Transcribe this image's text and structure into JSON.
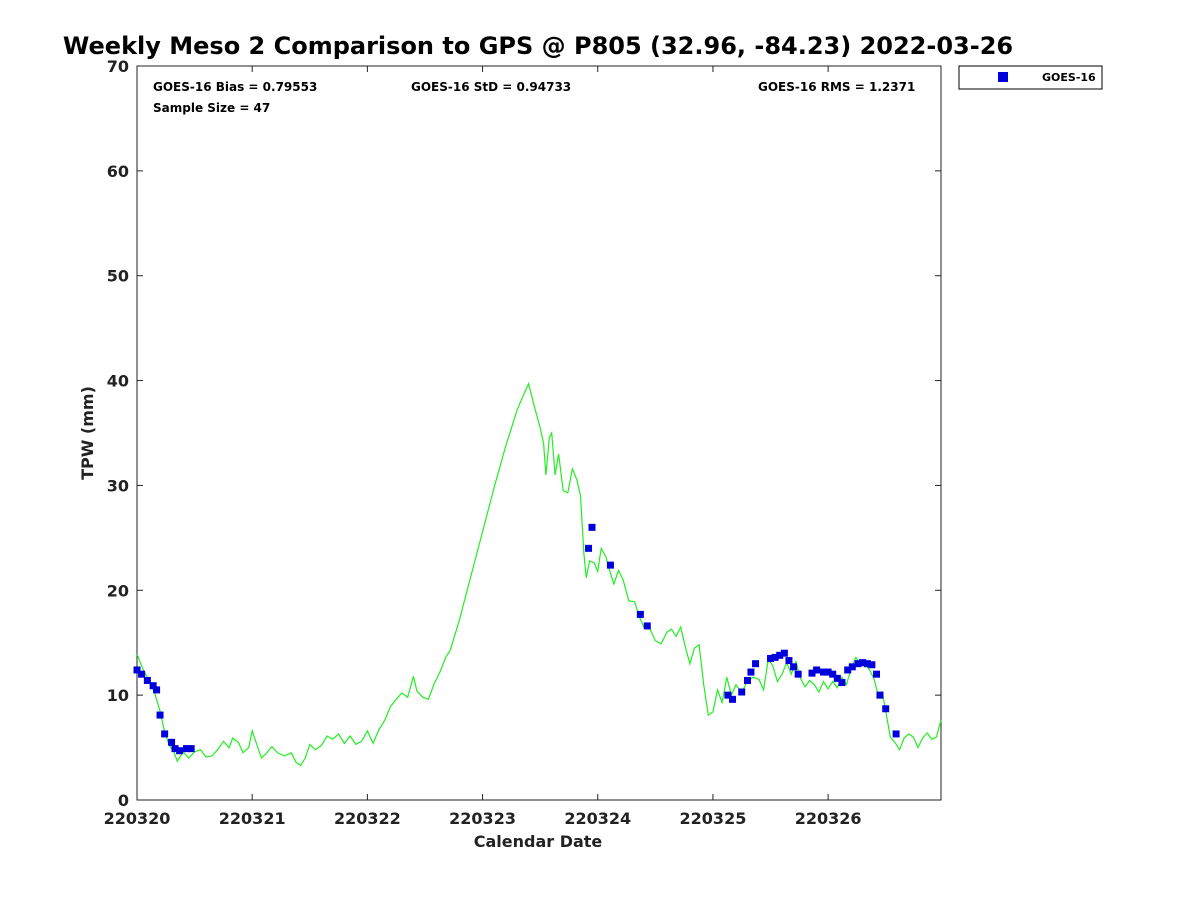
{
  "chart_data": {
    "type": "scatter",
    "title": "Weekly Meso 2 Comparison to GPS @ P805 (32.96, -84.23) 2022-03-26",
    "xlabel": "Calendar Date",
    "ylabel": "TPW (mm)",
    "xlim": [
      0,
      6.98
    ],
    "ylim": [
      0,
      70
    ],
    "x_ticks": [
      {
        "value": 0,
        "label": "220320"
      },
      {
        "value": 1,
        "label": "220321"
      },
      {
        "value": 2,
        "label": "220322"
      },
      {
        "value": 3,
        "label": "220323"
      },
      {
        "value": 4,
        "label": "220324"
      },
      {
        "value": 5,
        "label": "220325"
      },
      {
        "value": 6,
        "label": "220326"
      }
    ],
    "y_ticks": [
      0,
      10,
      20,
      30,
      40,
      50,
      60,
      70
    ],
    "stats": {
      "bias": "GOES-16 Bias = 0.79553",
      "std": "GOES-16 StD = 0.94733",
      "rms": "GOES-16 RMS = 1.2371",
      "sample": "Sample Size = 47"
    },
    "legend": {
      "position": "top-right-outside",
      "entries": [
        "GOES-16"
      ]
    },
    "colors": {
      "goes": "#0000dd",
      "gps": "#22ee22"
    },
    "series": [
      {
        "name": "GOES-16",
        "kind": "marker",
        "points": [
          [
            0.0,
            12.4
          ],
          [
            0.04,
            12.0
          ],
          [
            0.09,
            11.4
          ],
          [
            0.14,
            10.9
          ],
          [
            0.17,
            10.5
          ],
          [
            0.2,
            8.1
          ],
          [
            0.24,
            6.3
          ],
          [
            0.3,
            5.5
          ],
          [
            0.33,
            4.9
          ],
          [
            0.37,
            4.7
          ],
          [
            0.43,
            4.9
          ],
          [
            0.47,
            4.9
          ],
          [
            3.92,
            24.0
          ],
          [
            3.95,
            26.0
          ],
          [
            4.11,
            22.4
          ],
          [
            4.37,
            17.7
          ],
          [
            4.43,
            16.6
          ],
          [
            5.13,
            10.0
          ],
          [
            5.17,
            9.6
          ],
          [
            5.25,
            10.3
          ],
          [
            5.3,
            11.4
          ],
          [
            5.33,
            12.2
          ],
          [
            5.37,
            13.0
          ],
          [
            5.5,
            13.5
          ],
          [
            5.54,
            13.6
          ],
          [
            5.58,
            13.8
          ],
          [
            5.62,
            14.0
          ],
          [
            5.66,
            13.3
          ],
          [
            5.7,
            12.7
          ],
          [
            5.74,
            12.0
          ],
          [
            5.86,
            12.1
          ],
          [
            5.9,
            12.4
          ],
          [
            5.96,
            12.2
          ],
          [
            6.0,
            12.2
          ],
          [
            6.04,
            12.0
          ],
          [
            6.08,
            11.6
          ],
          [
            6.12,
            11.2
          ],
          [
            6.17,
            12.4
          ],
          [
            6.21,
            12.7
          ],
          [
            6.26,
            13.0
          ],
          [
            6.3,
            13.1
          ],
          [
            6.34,
            13.0
          ],
          [
            6.38,
            12.9
          ],
          [
            6.42,
            12.0
          ],
          [
            6.45,
            10.0
          ],
          [
            6.5,
            8.7
          ],
          [
            6.59,
            6.3
          ]
        ]
      },
      {
        "name": "",
        "kind": "line",
        "points": [
          [
            0.0,
            13.9
          ],
          [
            0.05,
            12.5
          ],
          [
            0.1,
            11.5
          ],
          [
            0.15,
            10.3
          ],
          [
            0.2,
            8.5
          ],
          [
            0.24,
            6.5
          ],
          [
            0.28,
            5.2
          ],
          [
            0.32,
            4.6
          ],
          [
            0.35,
            3.7
          ],
          [
            0.4,
            4.6
          ],
          [
            0.45,
            4.0
          ],
          [
            0.5,
            4.6
          ],
          [
            0.55,
            4.8
          ],
          [
            0.6,
            4.1
          ],
          [
            0.65,
            4.2
          ],
          [
            0.7,
            4.8
          ],
          [
            0.75,
            5.6
          ],
          [
            0.8,
            5.0
          ],
          [
            0.83,
            5.9
          ],
          [
            0.88,
            5.5
          ],
          [
            0.92,
            4.5
          ],
          [
            0.97,
            5.0
          ],
          [
            1.0,
            6.6
          ],
          [
            1.04,
            5.3
          ],
          [
            1.08,
            4.0
          ],
          [
            1.12,
            4.4
          ],
          [
            1.17,
            5.1
          ],
          [
            1.22,
            4.5
          ],
          [
            1.28,
            4.2
          ],
          [
            1.34,
            4.5
          ],
          [
            1.38,
            3.6
          ],
          [
            1.42,
            3.3
          ],
          [
            1.46,
            4.0
          ],
          [
            1.5,
            5.3
          ],
          [
            1.55,
            4.8
          ],
          [
            1.6,
            5.2
          ],
          [
            1.65,
            6.1
          ],
          [
            1.7,
            5.8
          ],
          [
            1.75,
            6.3
          ],
          [
            1.8,
            5.4
          ],
          [
            1.85,
            6.1
          ],
          [
            1.9,
            5.3
          ],
          [
            1.95,
            5.6
          ],
          [
            2.0,
            6.6
          ],
          [
            2.05,
            5.4
          ],
          [
            2.1,
            6.7
          ],
          [
            2.15,
            7.6
          ],
          [
            2.2,
            8.9
          ],
          [
            2.25,
            9.6
          ],
          [
            2.3,
            10.2
          ],
          [
            2.35,
            9.8
          ],
          [
            2.4,
            11.8
          ],
          [
            2.43,
            10.4
          ],
          [
            2.48,
            9.8
          ],
          [
            2.53,
            9.6
          ],
          [
            2.58,
            11.1
          ],
          [
            2.63,
            12.2
          ],
          [
            2.68,
            13.6
          ],
          [
            2.72,
            14.3
          ],
          [
            2.8,
            17.2
          ],
          [
            2.9,
            21.4
          ],
          [
            3.0,
            25.6
          ],
          [
            3.1,
            29.8
          ],
          [
            3.2,
            33.7
          ],
          [
            3.3,
            37.2
          ],
          [
            3.35,
            38.5
          ],
          [
            3.4,
            39.7
          ],
          [
            3.45,
            37.5
          ],
          [
            3.5,
            35.5
          ],
          [
            3.53,
            34.0
          ],
          [
            3.55,
            31.0
          ],
          [
            3.58,
            34.6
          ],
          [
            3.6,
            35.0
          ],
          [
            3.63,
            31.0
          ],
          [
            3.66,
            33.0
          ],
          [
            3.7,
            29.5
          ],
          [
            3.74,
            29.3
          ],
          [
            3.78,
            31.6
          ],
          [
            3.82,
            30.5
          ],
          [
            3.85,
            29.0
          ],
          [
            3.88,
            23.5
          ],
          [
            3.9,
            21.2
          ],
          [
            3.93,
            22.8
          ],
          [
            3.97,
            22.6
          ],
          [
            4.0,
            21.8
          ],
          [
            4.03,
            24.0
          ],
          [
            4.07,
            23.2
          ],
          [
            4.1,
            22.0
          ],
          [
            4.14,
            20.6
          ],
          [
            4.18,
            21.9
          ],
          [
            4.22,
            21.0
          ],
          [
            4.27,
            19.0
          ],
          [
            4.32,
            18.9
          ],
          [
            4.36,
            17.5
          ],
          [
            4.4,
            16.5
          ],
          [
            4.45,
            16.4
          ],
          [
            4.5,
            15.2
          ],
          [
            4.55,
            14.9
          ],
          [
            4.6,
            16.0
          ],
          [
            4.64,
            16.3
          ],
          [
            4.68,
            15.6
          ],
          [
            4.72,
            16.5
          ],
          [
            4.76,
            14.6
          ],
          [
            4.8,
            13.0
          ],
          [
            4.84,
            14.5
          ],
          [
            4.88,
            14.8
          ],
          [
            4.92,
            11.0
          ],
          [
            4.96,
            8.1
          ],
          [
            5.0,
            8.4
          ],
          [
            5.04,
            10.5
          ],
          [
            5.08,
            9.3
          ],
          [
            5.12,
            11.7
          ],
          [
            5.16,
            10.0
          ],
          [
            5.2,
            11.0
          ],
          [
            5.25,
            10.2
          ],
          [
            5.3,
            11.4
          ],
          [
            5.35,
            11.7
          ],
          [
            5.4,
            11.5
          ],
          [
            5.44,
            10.5
          ],
          [
            5.48,
            13.4
          ],
          [
            5.52,
            12.8
          ],
          [
            5.56,
            11.3
          ],
          [
            5.6,
            12.0
          ],
          [
            5.64,
            13.1
          ],
          [
            5.68,
            12.0
          ],
          [
            5.72,
            13.2
          ],
          [
            5.76,
            11.6
          ],
          [
            5.8,
            10.8
          ],
          [
            5.84,
            11.4
          ],
          [
            5.88,
            11.0
          ],
          [
            5.92,
            10.3
          ],
          [
            5.96,
            11.3
          ],
          [
            6.0,
            10.6
          ],
          [
            6.04,
            11.3
          ],
          [
            6.08,
            10.7
          ],
          [
            6.12,
            11.7
          ],
          [
            6.16,
            11.0
          ],
          [
            6.2,
            12.6
          ],
          [
            6.24,
            13.6
          ],
          [
            6.28,
            13.0
          ],
          [
            6.32,
            12.9
          ],
          [
            6.36,
            12.4
          ],
          [
            6.4,
            11.5
          ],
          [
            6.43,
            10.2
          ],
          [
            6.47,
            10.3
          ],
          [
            6.5,
            8.5
          ],
          [
            6.54,
            6.0
          ],
          [
            6.58,
            5.5
          ],
          [
            6.62,
            4.8
          ],
          [
            6.66,
            5.9
          ],
          [
            6.7,
            6.3
          ],
          [
            6.74,
            6.0
          ],
          [
            6.78,
            5.0
          ],
          [
            6.82,
            5.9
          ],
          [
            6.86,
            6.4
          ],
          [
            6.9,
            5.8
          ],
          [
            6.94,
            6.0
          ],
          [
            6.98,
            7.6
          ]
        ]
      }
    ]
  }
}
